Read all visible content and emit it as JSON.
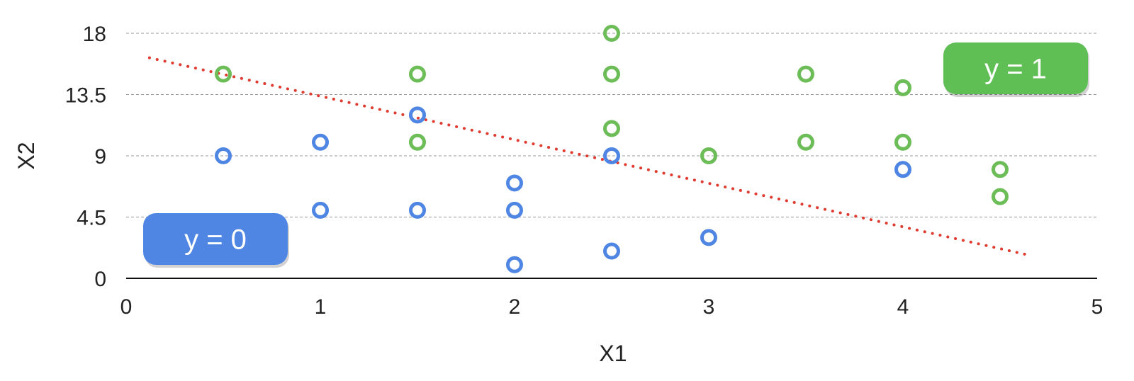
{
  "chart_data": {
    "type": "scatter",
    "title": "",
    "xlabel": "X1",
    "ylabel": "X2",
    "xlim": [
      0,
      5
    ],
    "ylim": [
      0,
      18
    ],
    "x_ticks": [
      "0",
      "1",
      "2",
      "3",
      "4",
      "5"
    ],
    "y_ticks": [
      "0",
      "4.5",
      "9",
      "13.5",
      "18"
    ],
    "grid": "horizontal dashed",
    "series": [
      {
        "name": "y = 0",
        "color": "#4f86e3",
        "marker": "hollow-circle",
        "points": [
          {
            "x": 0.5,
            "y": 9
          },
          {
            "x": 1,
            "y": 10
          },
          {
            "x": 1,
            "y": 5
          },
          {
            "x": 1.5,
            "y": 12
          },
          {
            "x": 1.5,
            "y": 5
          },
          {
            "x": 2,
            "y": 7
          },
          {
            "x": 2,
            "y": 5
          },
          {
            "x": 2,
            "y": 1
          },
          {
            "x": 2.5,
            "y": 9
          },
          {
            "x": 2.5,
            "y": 2
          },
          {
            "x": 3,
            "y": 3
          },
          {
            "x": 4,
            "y": 8
          }
        ]
      },
      {
        "name": "y = 1",
        "color": "#6cbd57",
        "marker": "hollow-circle",
        "points": [
          {
            "x": 0.5,
            "y": 15
          },
          {
            "x": 1.5,
            "y": 15
          },
          {
            "x": 1.5,
            "y": 10
          },
          {
            "x": 2.5,
            "y": 18
          },
          {
            "x": 2.5,
            "y": 15
          },
          {
            "x": 2.5,
            "y": 11
          },
          {
            "x": 3,
            "y": 9
          },
          {
            "x": 3.5,
            "y": 15
          },
          {
            "x": 3.5,
            "y": 10
          },
          {
            "x": 4,
            "y": 14
          },
          {
            "x": 4,
            "y": 10
          },
          {
            "x": 4.5,
            "y": 8
          },
          {
            "x": 4.5,
            "y": 6
          }
        ]
      }
    ],
    "decision_boundary": {
      "style": "dotted",
      "color": "#e03b30",
      "from": {
        "x": 0.12,
        "y": 16.2
      },
      "to": {
        "x": 4.65,
        "y": 1.7
      }
    },
    "legend": [
      {
        "label": "y = 0",
        "color": "#4f86e3",
        "placement": "bottom-left"
      },
      {
        "label": "y = 1",
        "color": "#5fbf55",
        "placement": "top-right"
      }
    ]
  }
}
